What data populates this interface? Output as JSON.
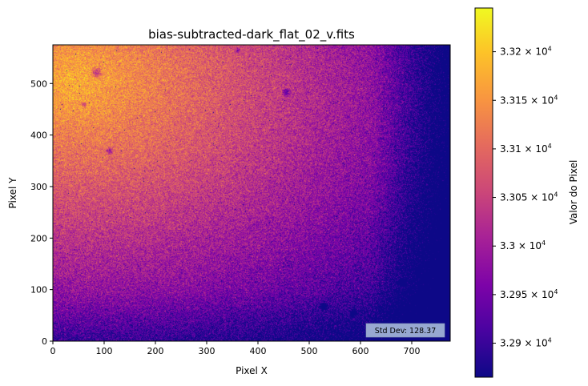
{
  "chart_data": {
    "type": "heatmap",
    "title": "bias-subtracted-dark_flat_02_v.fits",
    "xlabel": "Pixel X",
    "ylabel": "Pixel Y",
    "xlim": [
      0,
      775
    ],
    "ylim": [
      0,
      575
    ],
    "xticks": [
      0,
      100,
      200,
      300,
      400,
      500,
      600,
      700
    ],
    "yticks": [
      0,
      100,
      200,
      300,
      400,
      500
    ],
    "colormap": "plasma",
    "colorbar": {
      "label": "Valor do Pixel",
      "range": [
        32865,
        33245
      ],
      "ticks": [
        {
          "value": 32900,
          "mantissa": "3.29"
        },
        {
          "value": 32950,
          "mantissa": "3.295"
        },
        {
          "value": 33000,
          "mantissa": "3.3"
        },
        {
          "value": 33050,
          "mantissa": "3.305"
        },
        {
          "value": 33100,
          "mantissa": "3.31"
        },
        {
          "value": 33150,
          "mantissa": "3.315"
        },
        {
          "value": 33200,
          "mantissa": "3.32"
        }
      ],
      "tick_suffix": "× 10",
      "tick_exponent": "4"
    },
    "annotation": {
      "text": "Std Dev: 128.37",
      "text_color": "#ff0000",
      "box_color": "#b0c4de"
    },
    "features": {
      "bright_region": "upper-left",
      "dark_region": "lower-right",
      "dust_spots": [
        {
          "x": 85,
          "y": 522,
          "r": 14
        },
        {
          "x": 110,
          "y": 370,
          "r": 9
        },
        {
          "x": 455,
          "y": 483,
          "r": 10
        },
        {
          "x": 60,
          "y": 460,
          "r": 7
        },
        {
          "x": 527,
          "y": 68,
          "r": 10
        },
        {
          "x": 585,
          "y": 55,
          "r": 9
        },
        {
          "x": 680,
          "y": 115,
          "r": 9
        },
        {
          "x": 360,
          "y": 565,
          "r": 6
        }
      ]
    }
  }
}
